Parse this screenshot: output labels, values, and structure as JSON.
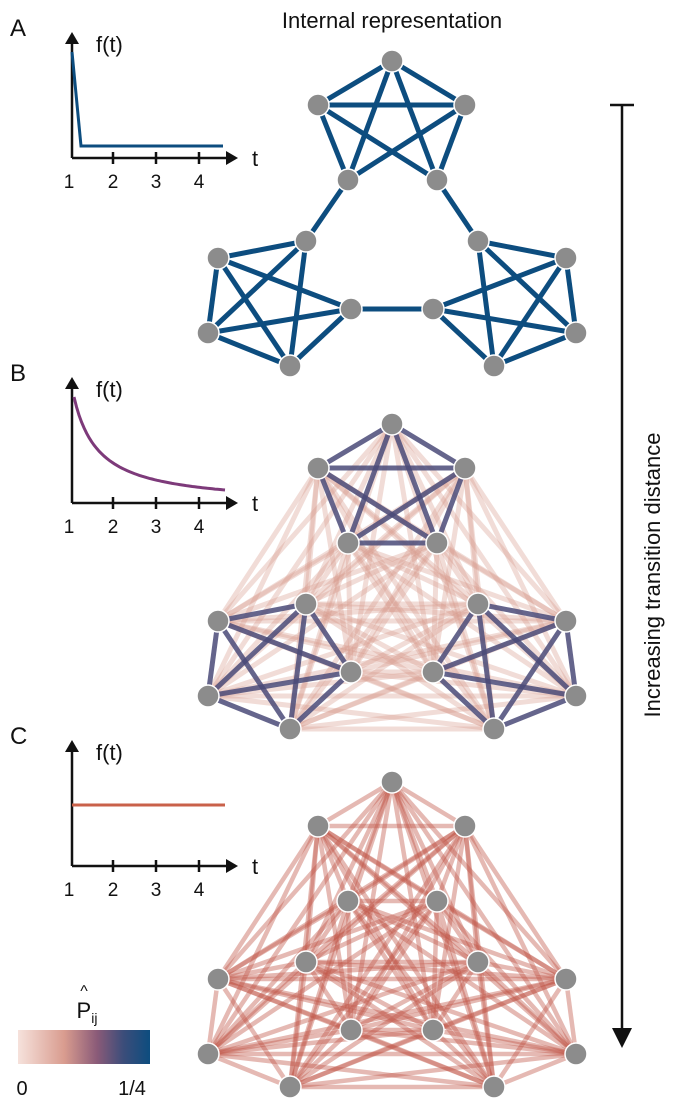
{
  "figure": {
    "title": "Internal representation",
    "side_label": "Increasing transition distance",
    "colors": {
      "dark_blue": "#0d4d7f",
      "purple": "#7d3a7a",
      "orange": "#c9614a",
      "node": "#8c8c8c",
      "axis": "#111111"
    }
  },
  "panels": [
    {
      "letter": "A",
      "ylabel": "f(t)",
      "xlabel": "t",
      "ticks": [
        "1",
        "2",
        "3",
        "4"
      ],
      "curve": "step",
      "curve_color": "#0d4d7f"
    },
    {
      "letter": "B",
      "ylabel": "f(t)",
      "xlabel": "t",
      "ticks": [
        "1",
        "2",
        "3",
        "4"
      ],
      "curve": "decay",
      "curve_color": "#7d3a7a"
    },
    {
      "letter": "C",
      "ylabel": "f(t)",
      "xlabel": "t",
      "ticks": [
        "1",
        "2",
        "3",
        "4"
      ],
      "curve": "flat",
      "curve_color": "#c9614a"
    }
  ],
  "colorbar": {
    "label_base": "P",
    "label_hat": "^",
    "label_sub": "ij",
    "min_label": "0",
    "max_label": "1/4",
    "stops": [
      "#f6e2dc",
      "#d99c8f",
      "#8a5a78",
      "#3b4d7a",
      "#0d4d7f"
    ]
  }
}
